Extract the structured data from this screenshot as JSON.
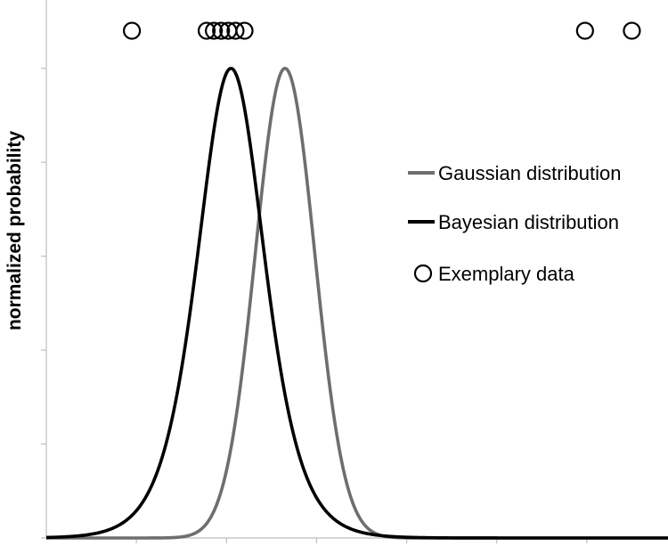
{
  "chart_data": {
    "type": "line",
    "title": "",
    "xlabel": "",
    "ylabel": "normalized probability",
    "xlim": [
      0,
      7
    ],
    "ylim": [
      0,
      1.1
    ],
    "grid": false,
    "legend_position": "right",
    "series": [
      {
        "name": "Gaussian distribution",
        "kind": "line",
        "color": "#6e6e6e",
        "shape": "gaussian",
        "mean": 2.65,
        "sd": 0.33,
        "peak": 1.0
      },
      {
        "name": "Bayesian distribution",
        "kind": "line",
        "color": "#000000",
        "shape": "logistic-bell",
        "center": 2.05,
        "scale": 0.25,
        "peak": 1.0
      },
      {
        "name": "Exemplary data",
        "kind": "points",
        "marker": "open-circle",
        "x": [
          0.95,
          1.78,
          1.86,
          1.94,
          2.02,
          2.1,
          2.2,
          5.98,
          6.5
        ],
        "y": [
          1.08,
          1.08,
          1.08,
          1.08,
          1.08,
          1.08,
          1.08,
          1.08,
          1.08
        ]
      }
    ]
  }
}
